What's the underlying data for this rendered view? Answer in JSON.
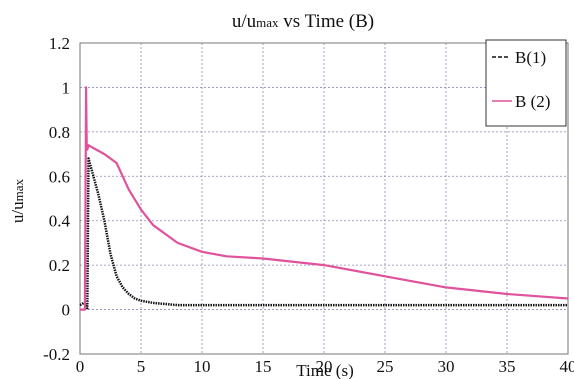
{
  "chart_data": {
    "type": "line",
    "title_main": "u/u",
    "title_sub": "max",
    "title_rest": " vs Time (B)",
    "xlabel": "Time (s)",
    "ylabel_main": "u/u",
    "ylabel_sub": "max",
    "xlim": [
      0,
      40
    ],
    "ylim": [
      -0.2,
      1.2
    ],
    "x_ticks": [
      "0",
      "5",
      "10",
      "15",
      "20",
      "25",
      "30",
      "35",
      "40"
    ],
    "y_ticks": [
      "-0.2",
      "0",
      "0.2",
      "0.4",
      "0.6",
      "0.8",
      "1",
      "1.2"
    ],
    "grid": true,
    "legend_position": "top-right",
    "series": [
      {
        "name": "B(1)",
        "color": "#111111",
        "x": [
          0,
          0.3,
          0.5,
          0.6,
          0.7,
          1.0,
          1.5,
          2.0,
          2.5,
          3.0,
          3.5,
          4.0,
          4.5,
          5.0,
          6.0,
          7.0,
          8.0,
          10.0,
          15.0,
          20.0,
          25.0,
          30.0,
          35.0,
          40.0
        ],
        "y": [
          0.02,
          0.03,
          0.02,
          0.0,
          0.68,
          0.62,
          0.52,
          0.4,
          0.25,
          0.15,
          0.1,
          0.07,
          0.05,
          0.04,
          0.03,
          0.025,
          0.02,
          0.02,
          0.02,
          0.02,
          0.02,
          0.02,
          0.02,
          0.02
        ]
      },
      {
        "name": "B (2)",
        "color": "#e0529c",
        "x": [
          0,
          0.4,
          0.5,
          0.55,
          0.6,
          0.7,
          1.0,
          2.0,
          3.0,
          3.5,
          4.0,
          5.0,
          6.0,
          8.0,
          10.0,
          12.0,
          15.0,
          20.0,
          25.0,
          30.0,
          35.0,
          40.0
        ],
        "y": [
          0.0,
          0.0,
          1.0,
          0.75,
          0.72,
          0.74,
          0.73,
          0.7,
          0.66,
          0.6,
          0.54,
          0.45,
          0.38,
          0.3,
          0.26,
          0.24,
          0.23,
          0.2,
          0.15,
          0.1,
          0.07,
          0.05
        ]
      }
    ]
  }
}
